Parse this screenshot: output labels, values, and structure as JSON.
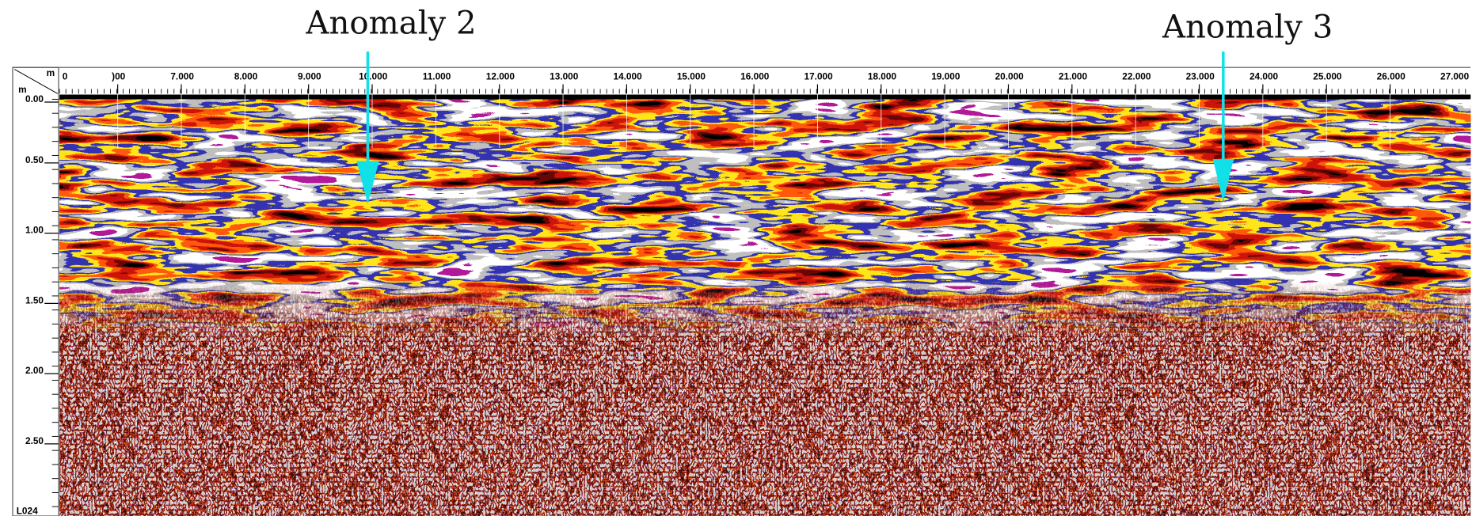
{
  "annotations": [
    {
      "label": "Anomaly 2"
    },
    {
      "label": "Anomaly 3"
    }
  ],
  "x_axis": {
    "unit": "m",
    "tick_labels": [
      "0",
      ")00",
      "7.000",
      "8.000",
      "9.000",
      "10.000",
      "11.000",
      "12.000",
      "13.000",
      "14.000",
      "15.000",
      "16.000",
      "17.000",
      "18.000",
      "19.000",
      "20.000",
      "21.000",
      "22.000",
      "23.000",
      "24.000",
      "25.000",
      "26.000",
      "27.000"
    ]
  },
  "y_axis": {
    "unit": "m",
    "tick_labels": [
      "0.00",
      "0.50",
      "1.00",
      "1.50",
      "2.00",
      "2.50"
    ]
  },
  "profile": "L024"
}
